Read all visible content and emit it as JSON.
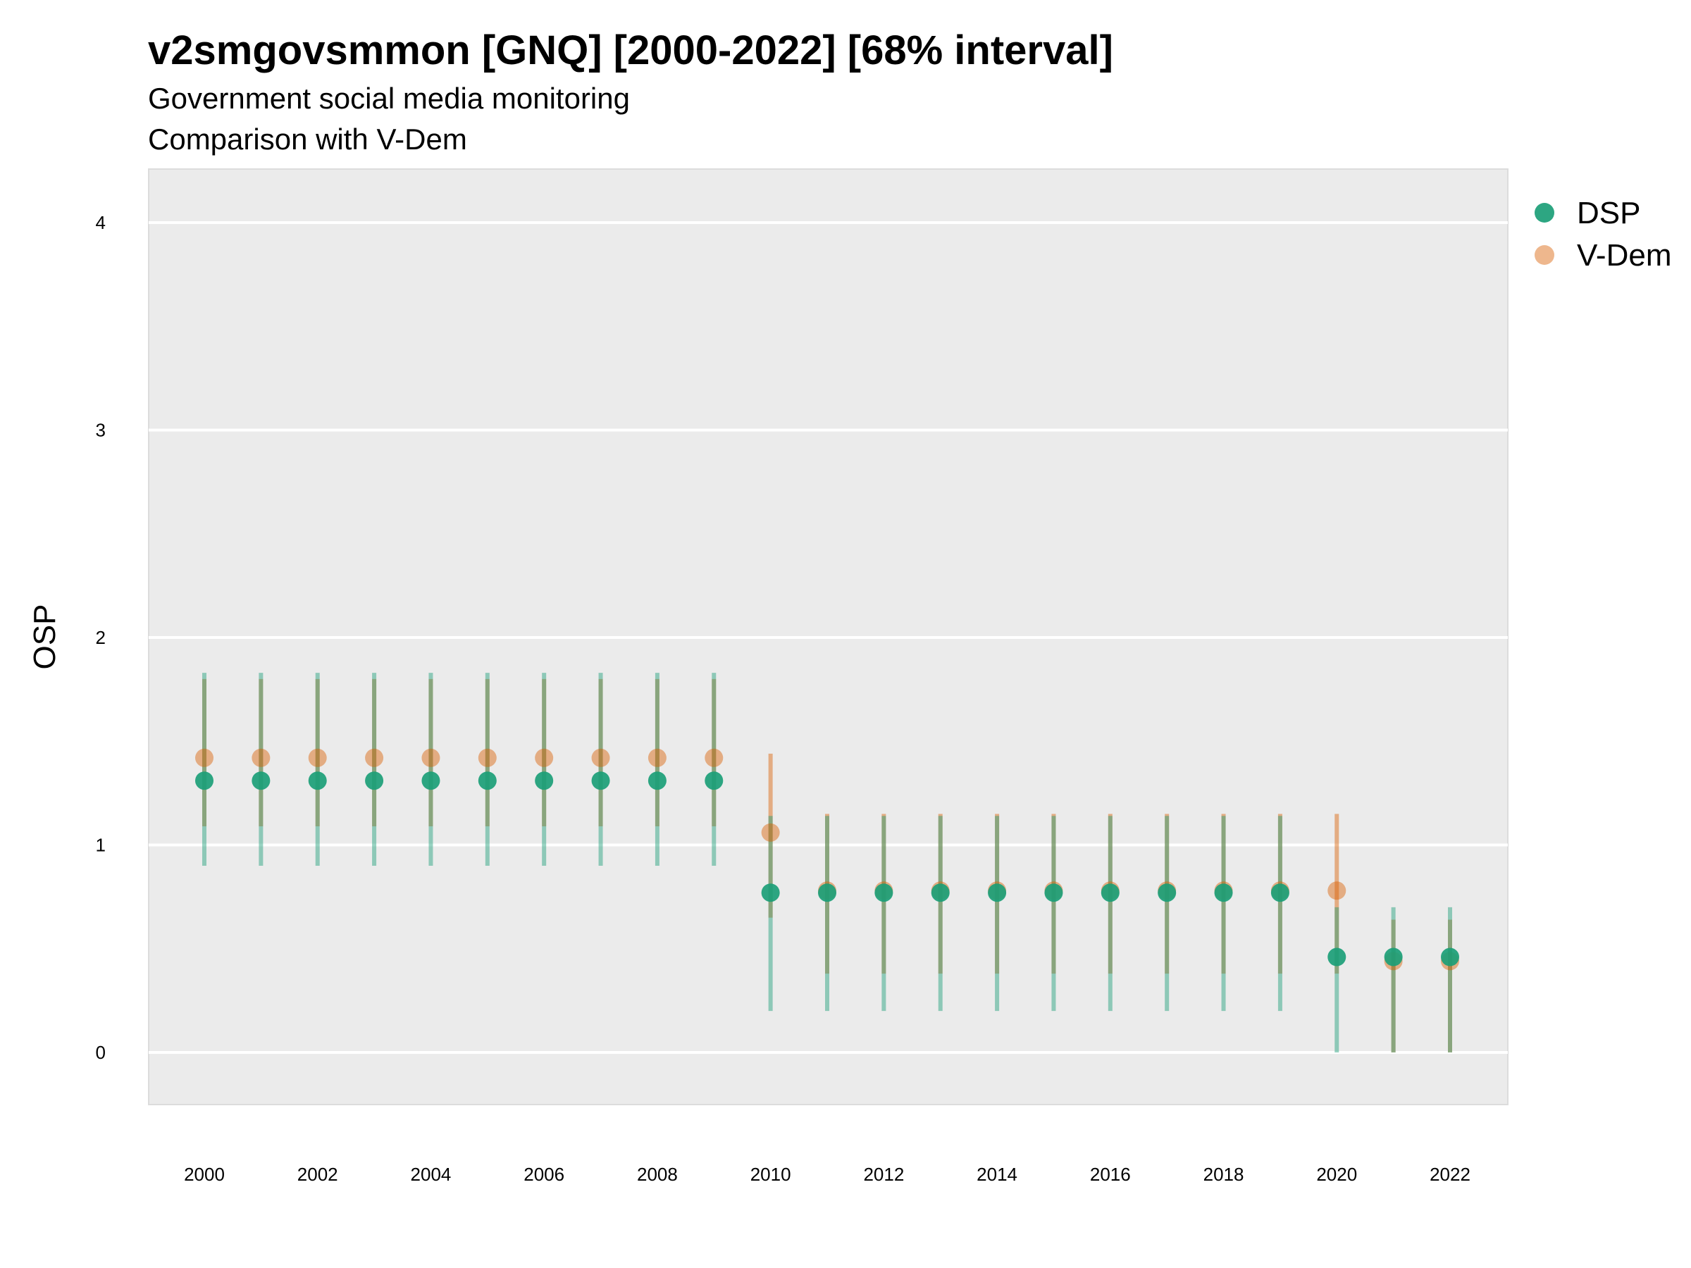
{
  "chart_data": {
    "type": "scatter",
    "title": "v2smgovsmmon [GNQ] [2000-2022] [68% interval]",
    "subtitle": "Government social media monitoring",
    "subtitle2": "Comparison with V-Dem",
    "xlabel": "",
    "ylabel": "OSP",
    "ylim": [
      -0.25,
      4.25
    ],
    "yticks": [
      0,
      1,
      2,
      3,
      4
    ],
    "xticks": [
      2000,
      2002,
      2004,
      2006,
      2008,
      2010,
      2012,
      2014,
      2016,
      2018,
      2020,
      2022
    ],
    "grid": true,
    "legend_position": "right",
    "series": [
      {
        "name": "DSP",
        "color": "#1b9e77",
        "points": [
          {
            "x": 2000,
            "y": 1.31,
            "low": 0.9,
            "high": 1.83
          },
          {
            "x": 2001,
            "y": 1.31,
            "low": 0.9,
            "high": 1.83
          },
          {
            "x": 2002,
            "y": 1.31,
            "low": 0.9,
            "high": 1.83
          },
          {
            "x": 2003,
            "y": 1.31,
            "low": 0.9,
            "high": 1.83
          },
          {
            "x": 2004,
            "y": 1.31,
            "low": 0.9,
            "high": 1.83
          },
          {
            "x": 2005,
            "y": 1.31,
            "low": 0.9,
            "high": 1.83
          },
          {
            "x": 2006,
            "y": 1.31,
            "low": 0.9,
            "high": 1.83
          },
          {
            "x": 2007,
            "y": 1.31,
            "low": 0.9,
            "high": 1.83
          },
          {
            "x": 2008,
            "y": 1.31,
            "low": 0.9,
            "high": 1.83
          },
          {
            "x": 2009,
            "y": 1.31,
            "low": 0.9,
            "high": 1.83
          },
          {
            "x": 2010,
            "y": 0.77,
            "low": 0.2,
            "high": 1.14
          },
          {
            "x": 2011,
            "y": 0.77,
            "low": 0.2,
            "high": 1.14
          },
          {
            "x": 2012,
            "y": 0.77,
            "low": 0.2,
            "high": 1.14
          },
          {
            "x": 2013,
            "y": 0.77,
            "low": 0.2,
            "high": 1.14
          },
          {
            "x": 2014,
            "y": 0.77,
            "low": 0.2,
            "high": 1.14
          },
          {
            "x": 2015,
            "y": 0.77,
            "low": 0.2,
            "high": 1.14
          },
          {
            "x": 2016,
            "y": 0.77,
            "low": 0.2,
            "high": 1.14
          },
          {
            "x": 2017,
            "y": 0.77,
            "low": 0.2,
            "high": 1.14
          },
          {
            "x": 2018,
            "y": 0.77,
            "low": 0.2,
            "high": 1.14
          },
          {
            "x": 2019,
            "y": 0.77,
            "low": 0.2,
            "high": 1.14
          },
          {
            "x": 2020,
            "y": 0.46,
            "low": 0.0,
            "high": 0.7
          },
          {
            "x": 2021,
            "y": 0.46,
            "low": 0.0,
            "high": 0.7
          },
          {
            "x": 2022,
            "y": 0.46,
            "low": 0.0,
            "high": 0.7
          }
        ]
      },
      {
        "name": "V-Dem",
        "color": "#d95f02",
        "points": [
          {
            "x": 2000,
            "y": 1.42,
            "low": 1.09,
            "high": 1.8
          },
          {
            "x": 2001,
            "y": 1.42,
            "low": 1.09,
            "high": 1.8
          },
          {
            "x": 2002,
            "y": 1.42,
            "low": 1.09,
            "high": 1.8
          },
          {
            "x": 2003,
            "y": 1.42,
            "low": 1.09,
            "high": 1.8
          },
          {
            "x": 2004,
            "y": 1.42,
            "low": 1.09,
            "high": 1.8
          },
          {
            "x": 2005,
            "y": 1.42,
            "low": 1.09,
            "high": 1.8
          },
          {
            "x": 2006,
            "y": 1.42,
            "low": 1.09,
            "high": 1.8
          },
          {
            "x": 2007,
            "y": 1.42,
            "low": 1.09,
            "high": 1.8
          },
          {
            "x": 2008,
            "y": 1.42,
            "low": 1.09,
            "high": 1.8
          },
          {
            "x": 2009,
            "y": 1.42,
            "low": 1.09,
            "high": 1.8
          },
          {
            "x": 2010,
            "y": 1.06,
            "low": 0.65,
            "high": 1.44
          },
          {
            "x": 2011,
            "y": 0.78,
            "low": 0.38,
            "high": 1.15
          },
          {
            "x": 2012,
            "y": 0.78,
            "low": 0.38,
            "high": 1.15
          },
          {
            "x": 2013,
            "y": 0.78,
            "low": 0.38,
            "high": 1.15
          },
          {
            "x": 2014,
            "y": 0.78,
            "low": 0.38,
            "high": 1.15
          },
          {
            "x": 2015,
            "y": 0.78,
            "low": 0.38,
            "high": 1.15
          },
          {
            "x": 2016,
            "y": 0.78,
            "low": 0.38,
            "high": 1.15
          },
          {
            "x": 2017,
            "y": 0.78,
            "low": 0.38,
            "high": 1.15
          },
          {
            "x": 2018,
            "y": 0.78,
            "low": 0.38,
            "high": 1.15
          },
          {
            "x": 2019,
            "y": 0.78,
            "low": 0.38,
            "high": 1.15
          },
          {
            "x": 2020,
            "y": 0.78,
            "low": 0.38,
            "high": 1.15
          },
          {
            "x": 2021,
            "y": 0.44,
            "low": 0.0,
            "high": 0.64
          },
          {
            "x": 2022,
            "y": 0.44,
            "low": 0.0,
            "high": 0.64
          }
        ]
      }
    ]
  }
}
